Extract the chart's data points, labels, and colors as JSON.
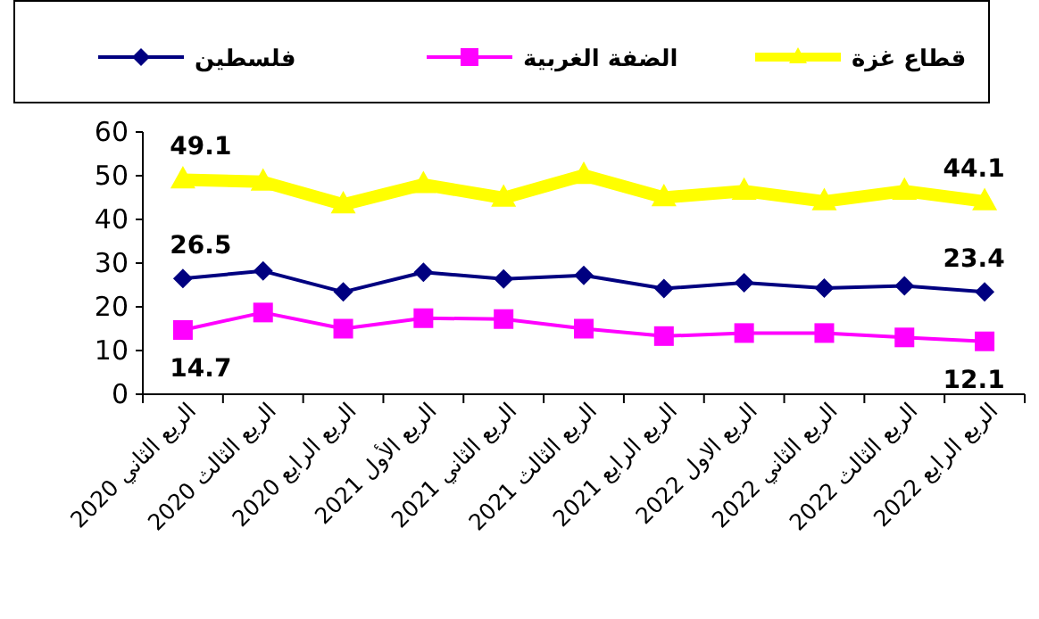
{
  "chart_data": {
    "type": "line",
    "categories": [
      "الربع الثاني 2020",
      "الربع الثالث 2020",
      "الربع الرابع 2020",
      "الربع الأول 2021",
      "الربع الثاني 2021",
      "الربع الثالث 2021",
      "الربع الرابع 2021",
      "الربع الاول 2022",
      "الربع الثاني 2022",
      "الربع الثالث 2022",
      "الربع الرابع 2022"
    ],
    "series": [
      {
        "name": "فلسطين",
        "color": "#000080",
        "marker": "diamond",
        "values": [
          26.5,
          28.2,
          23.4,
          27.9,
          26.4,
          27.2,
          24.2,
          25.5,
          24.3,
          24.8,
          23.4
        ],
        "value_labels": [
          "26.5",
          null,
          null,
          null,
          null,
          null,
          null,
          null,
          null,
          null,
          "23.4"
        ]
      },
      {
        "name": "الضفة الغربية",
        "color": "#ff00ff",
        "marker": "square",
        "values": [
          14.7,
          18.7,
          15.0,
          17.4,
          17.2,
          15.0,
          13.3,
          14.0,
          14.0,
          13.0,
          12.1
        ],
        "value_labels": [
          "14.7",
          null,
          null,
          null,
          null,
          null,
          null,
          null,
          null,
          null,
          "12.1"
        ]
      },
      {
        "name": "قطاع غزة",
        "color": "#ffff00",
        "marker": "triangle",
        "values": [
          49.1,
          48.6,
          43.4,
          48.0,
          44.9,
          50.1,
          45.0,
          46.5,
          44.1,
          46.5,
          44.1
        ],
        "value_labels": [
          "49.1",
          null,
          null,
          null,
          null,
          null,
          null,
          null,
          null,
          null,
          "44.1"
        ]
      }
    ],
    "ylim": [
      0,
      60
    ],
    "yticks": [
      0,
      10,
      20,
      30,
      40,
      50,
      60
    ],
    "grid": false,
    "legend": "top",
    "line_style": "solid"
  }
}
